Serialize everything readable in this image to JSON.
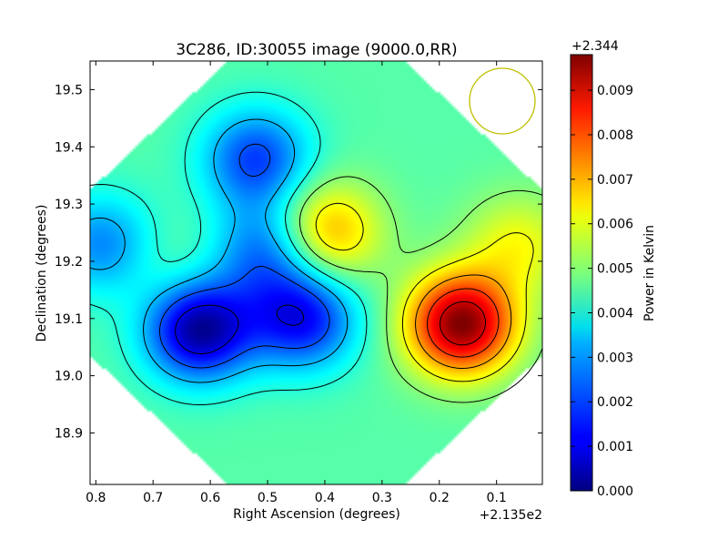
{
  "chart_data": {
    "type": "heatmap",
    "title": "3C286, ID:30055 image (9000.0,RR)",
    "xlabel": "Right Ascension (degrees)",
    "ylabel": "Declination (degrees)",
    "x_offset_label": "+2.135e2",
    "x_ticks": [
      "0.8",
      "0.7",
      "0.6",
      "0.5",
      "0.4",
      "0.3",
      "0.2",
      "0.1"
    ],
    "x_tick_values": [
      0.8,
      0.7,
      0.6,
      0.5,
      0.4,
      0.3,
      0.2,
      0.1
    ],
    "y_ticks": [
      "19.5",
      "19.4",
      "19.3",
      "19.2",
      "19.1",
      "19.0",
      "18.9"
    ],
    "y_tick_values": [
      19.5,
      19.4,
      19.3,
      19.2,
      19.1,
      19.0,
      18.9
    ],
    "xlim": [
      0.81,
      0.02
    ],
    "ylim": [
      18.81,
      19.55
    ],
    "colorbar": {
      "label": "Power in Kelvin",
      "offset_label": "+2.344",
      "ticks": [
        "0.000",
        "0.001",
        "0.002",
        "0.003",
        "0.004",
        "0.005",
        "0.006",
        "0.007",
        "0.008",
        "0.009"
      ],
      "tick_values": [
        0,
        0.001,
        0.002,
        0.003,
        0.004,
        0.005,
        0.006,
        0.007,
        0.008,
        0.009
      ],
      "range": [
        0,
        0.0098
      ],
      "colormap": "jet"
    },
    "background_level": 0.0045,
    "features": [
      {
        "x": 0.62,
        "y": 19.08,
        "level": 0.0002
      },
      {
        "x": 0.44,
        "y": 19.1,
        "level": 0.0012
      },
      {
        "x": 0.52,
        "y": 19.38,
        "level": 0.0018
      },
      {
        "x": 0.5,
        "y": 19.22,
        "level": 0.0022
      },
      {
        "x": 0.79,
        "y": 19.23,
        "level": 0.0025
      },
      {
        "x": 0.4,
        "y": 19.25,
        "level": 0.0072
      },
      {
        "x": 0.16,
        "y": 19.09,
        "level": 0.0098
      },
      {
        "x": 0.06,
        "y": 19.23,
        "level": 0.006
      },
      {
        "x": 0.67,
        "y": 19.19,
        "level": 0.005
      }
    ],
    "beam": {
      "x": 0.09,
      "y": 19.48,
      "color": "#bfbf00"
    },
    "grid": false
  }
}
